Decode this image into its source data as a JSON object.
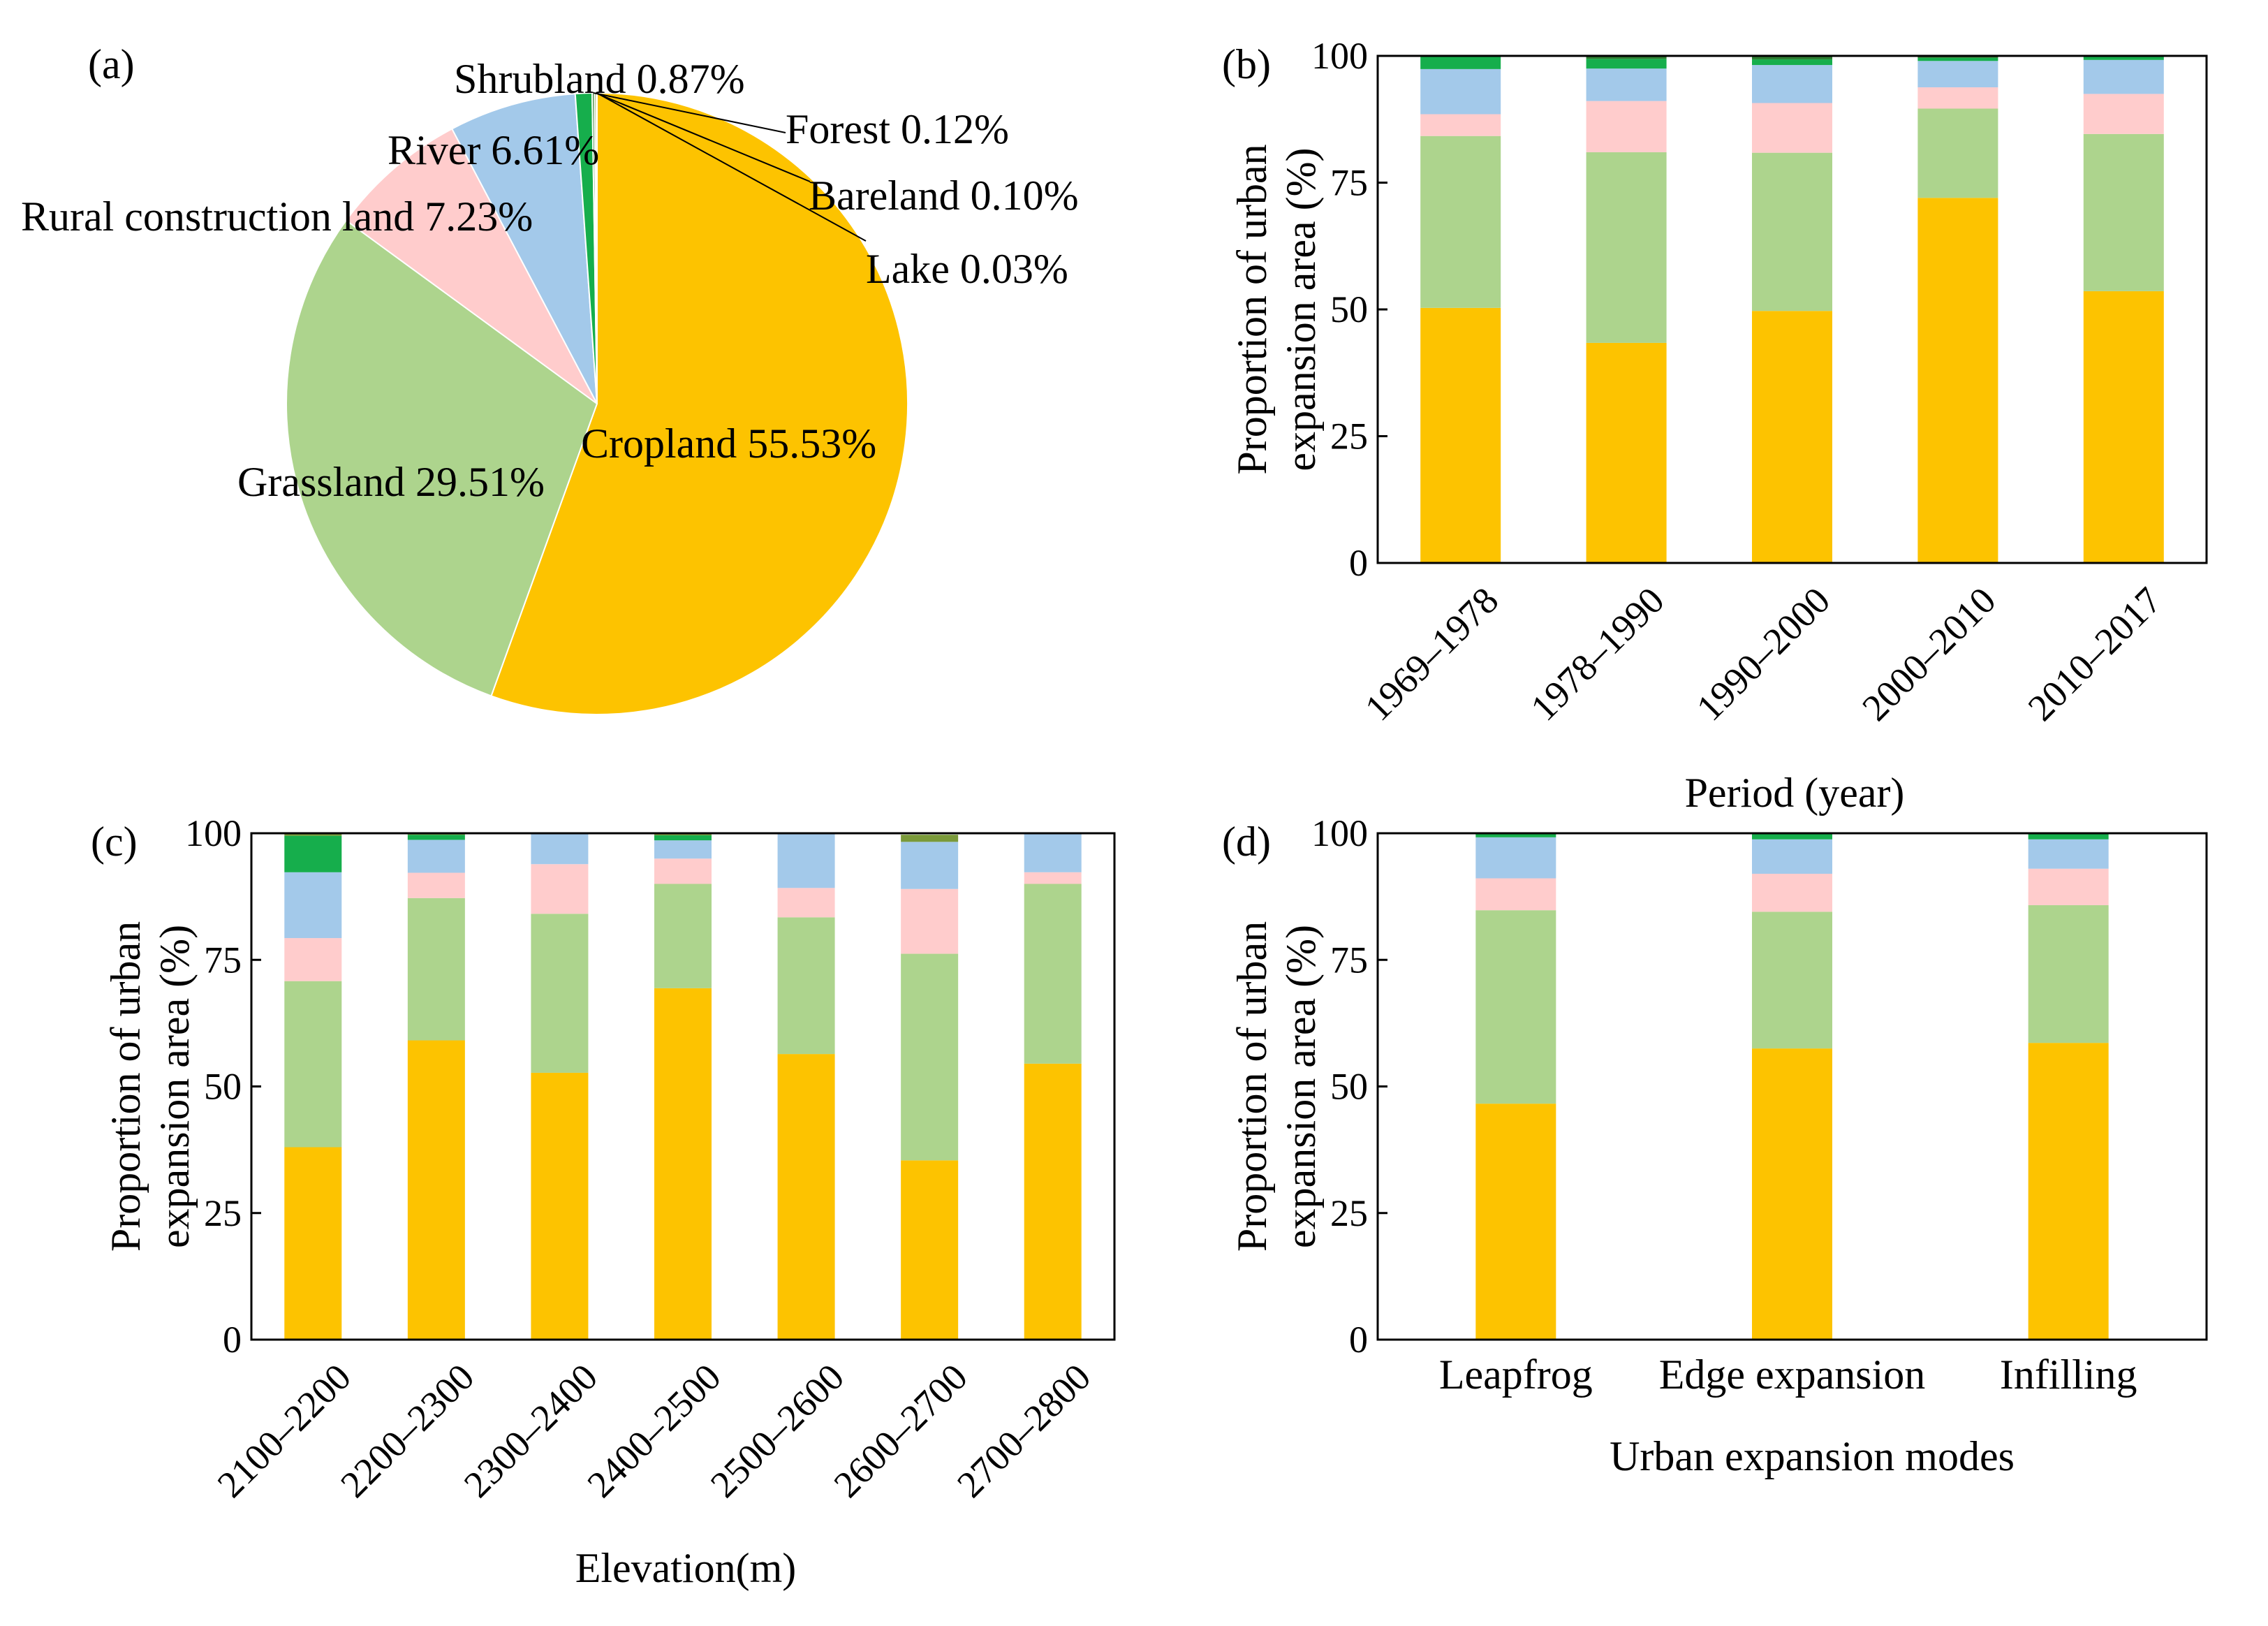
{
  "legend_colors": {
    "Cropland": "#FDC300",
    "Grassland": "#ADD48D",
    "Rural construction land": "#FFCCCC",
    "River": "#A3C9EA",
    "Shrubland": "#16AE4C",
    "Forest": "#2E7D32",
    "Bareland": "#7A9A3A",
    "Lake": "#4A90C2"
  },
  "chart_data": [
    {
      "panel": "(a)",
      "type": "pie",
      "slices": [
        {
          "name": "Cropland",
          "value": 55.53,
          "label": "Cropland 55.53%"
        },
        {
          "name": "Grassland",
          "value": 29.51,
          "label": "Grassland 29.51%"
        },
        {
          "name": "Rural construction land",
          "value": 7.23,
          "label": "Rural construction land 7.23%"
        },
        {
          "name": "River",
          "value": 6.61,
          "label": "River 6.61%"
        },
        {
          "name": "Shrubland",
          "value": 0.87,
          "label": "Shrubland 0.87%"
        },
        {
          "name": "Forest",
          "value": 0.12,
          "label": "Forest 0.12%"
        },
        {
          "name": "Bareland",
          "value": 0.1,
          "label": "Bareland 0.10%"
        },
        {
          "name": "Lake",
          "value": 0.03,
          "label": "Lake 0.03%"
        }
      ]
    },
    {
      "panel": "(b)",
      "type": "bar",
      "stacked": true,
      "xlabel": "Period (year)",
      "ylabel": [
        "Proportion of urban",
        "expansion area (%)"
      ],
      "ylim": [
        0,
        100
      ],
      "yticks": [
        "0",
        "25",
        "50",
        "75",
        "100"
      ],
      "categories": [
        "1969–1978",
        "1978–1990",
        "1990–2000",
        "2000–2010",
        "2010–2017"
      ],
      "series": [
        {
          "name": "Cropland",
          "values": [
            50.3,
            43.4,
            49.7,
            72.0,
            53.6
          ]
        },
        {
          "name": "Grassland",
          "values": [
            33.9,
            37.6,
            31.2,
            17.6,
            31.0
          ]
        },
        {
          "name": "Rural construction land",
          "values": [
            4.3,
            10.1,
            9.8,
            4.2,
            7.9
          ]
        },
        {
          "name": "River",
          "values": [
            8.9,
            6.4,
            7.5,
            5.2,
            6.7
          ]
        },
        {
          "name": "Shrubland",
          "values": [
            2.4,
            1.9,
            1.1,
            0.6,
            0.6
          ]
        },
        {
          "name": "Forest",
          "values": [
            0.2,
            0.6,
            0.7,
            0.4,
            0.2
          ]
        }
      ]
    },
    {
      "panel": "(c)",
      "type": "bar",
      "stacked": true,
      "xlabel": "Elevation(m)",
      "ylabel": [
        "Proportion of urban",
        "expansion area (%)"
      ],
      "ylim": [
        0,
        100
      ],
      "yticks": [
        "0",
        "25",
        "50",
        "75",
        "100"
      ],
      "categories": [
        "2100–2200",
        "2200–2300",
        "2300–2400",
        "2400–2500",
        "2500–2600",
        "2600–2700",
        "2700–2800"
      ],
      "series": [
        {
          "name": "Cropland",
          "values": [
            38.0,
            59.1,
            52.7,
            69.4,
            56.4,
            35.4,
            54.5
          ]
        },
        {
          "name": "Grassland",
          "values": [
            32.8,
            28.1,
            31.4,
            20.6,
            27.0,
            40.8,
            35.5
          ]
        },
        {
          "name": "Rural construction land",
          "values": [
            8.5,
            5.0,
            9.8,
            5.0,
            5.8,
            12.8,
            2.3
          ]
        },
        {
          "name": "River",
          "values": [
            13.0,
            6.5,
            6.1,
            3.6,
            10.8,
            9.3,
            7.5
          ]
        },
        {
          "name": "Shrubland",
          "values": [
            7.2,
            1.0,
            0.0,
            1.0,
            0.0,
            0.0,
            0.2
          ]
        },
        {
          "name": "Bareland",
          "values": [
            0.5,
            0.3,
            0.0,
            0.4,
            0.0,
            1.4,
            0.0
          ]
        }
      ]
    },
    {
      "panel": "(d)",
      "type": "bar",
      "stacked": true,
      "xlabel": "Urban expansion modes",
      "ylabel": [
        "Proportion of urban",
        "expansion area (%)"
      ],
      "ylim": [
        0,
        100
      ],
      "yticks": [
        "0",
        "25",
        "50",
        "75",
        "100"
      ],
      "categories": [
        "Leapfrog",
        "Edge expansion",
        "Infilling"
      ],
      "series": [
        {
          "name": "Cropland",
          "values": [
            46.6,
            57.5,
            58.6
          ]
        },
        {
          "name": "Grassland",
          "values": [
            38.2,
            27.0,
            27.2
          ]
        },
        {
          "name": "Rural construction land",
          "values": [
            6.3,
            7.5,
            7.2
          ]
        },
        {
          "name": "River",
          "values": [
            8.1,
            6.8,
            5.8
          ]
        },
        {
          "name": "Shrubland",
          "values": [
            0.8,
            1.0,
            1.0
          ]
        },
        {
          "name": "Forest",
          "values": [
            0.0,
            0.2,
            0.2
          ]
        }
      ]
    }
  ]
}
